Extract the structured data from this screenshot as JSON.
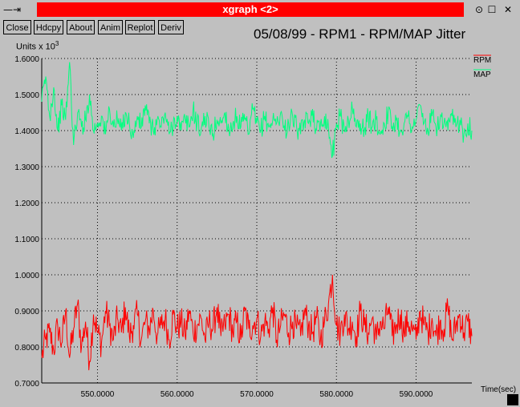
{
  "window": {
    "title": "xgraph <2>",
    "left_glyphs": "—⇥",
    "minimize_glyph": "⊙",
    "maximize_glyph": "☐",
    "close_glyph": "✕"
  },
  "toolbar": {
    "buttons": [
      "Close",
      "Hdcpy",
      "About",
      "Anim",
      "Replot",
      "Deriv"
    ]
  },
  "header": {
    "title": "05/08/99 - RPM1 - RPM/MAP Jitter",
    "units_label": "Units x 10",
    "units_exponent": "3"
  },
  "colors": {
    "rpm": "#ff0000",
    "map": "#00ff7f",
    "grid": "#000000",
    "background": "#c0c0c0"
  },
  "chart_data": {
    "type": "line",
    "title": "05/08/99 - RPM1 - RPM/MAP Jitter",
    "xlabel": "Time(sec)",
    "ylabel": "Units x 10^3",
    "xlim": [
      543.0,
      597.0
    ],
    "ylim": [
      0.7,
      1.6
    ],
    "x_ticks": [
      "550.0000",
      "560.0000",
      "570.0000",
      "580.0000",
      "590.0000"
    ],
    "x_tick_values": [
      550,
      560,
      570,
      580,
      590
    ],
    "y_ticks": [
      "0.7000",
      "0.8000",
      "0.9000",
      "1.0000",
      "1.1000",
      "1.2000",
      "1.3000",
      "1.4000",
      "1.5000",
      "1.6000"
    ],
    "y_tick_values": [
      0.7,
      0.8,
      0.9,
      1.0,
      1.1,
      1.2,
      1.3,
      1.4,
      1.5,
      1.6
    ],
    "grid": true,
    "legend_position": "top-right",
    "series": [
      {
        "name": "RPM",
        "color": "#ff0000",
        "x": [
          543.0,
          543.5,
          544.0,
          544.5,
          545.0,
          545.5,
          546.0,
          546.5,
          547.0,
          547.5,
          548.0,
          548.5,
          549.0,
          549.5,
          550.0,
          550.5,
          551.0,
          551.5,
          552.0,
          552.5,
          553.0,
          553.5,
          554.0,
          554.5,
          555.0,
          555.5,
          556.0,
          556.5,
          557.0,
          557.5,
          558.0,
          558.5,
          559.0,
          559.5,
          560.0,
          560.5,
          561.0,
          561.5,
          562.0,
          562.5,
          563.0,
          563.5,
          564.0,
          564.5,
          565.0,
          565.5,
          566.0,
          566.5,
          567.0,
          567.5,
          568.0,
          568.5,
          569.0,
          569.5,
          570.0,
          570.5,
          571.0,
          571.5,
          572.0,
          572.5,
          573.0,
          573.5,
          574.0,
          574.5,
          575.0,
          575.5,
          576.0,
          576.5,
          577.0,
          577.5,
          578.0,
          578.5,
          579.0,
          579.5,
          580.0,
          580.5,
          581.0,
          581.5,
          582.0,
          582.5,
          583.0,
          583.5,
          584.0,
          584.5,
          585.0,
          585.5,
          586.0,
          586.5,
          587.0,
          587.5,
          588.0,
          588.5,
          589.0,
          589.5,
          590.0,
          590.5,
          591.0,
          591.5,
          592.0,
          592.5,
          593.0,
          593.5,
          594.0,
          594.5,
          595.0,
          595.5,
          596.0,
          596.5,
          597.0
        ],
        "y": [
          0.77,
          0.82,
          0.84,
          0.79,
          0.86,
          0.81,
          0.9,
          0.77,
          0.85,
          0.92,
          0.8,
          0.87,
          0.76,
          0.89,
          0.84,
          0.81,
          0.9,
          0.86,
          0.82,
          0.88,
          0.84,
          0.91,
          0.83,
          0.86,
          0.89,
          0.82,
          0.87,
          0.85,
          0.9,
          0.83,
          0.86,
          0.88,
          0.82,
          0.89,
          0.85,
          0.87,
          0.83,
          0.9,
          0.84,
          0.86,
          0.88,
          0.82,
          0.87,
          0.85,
          0.91,
          0.83,
          0.86,
          0.89,
          0.84,
          0.87,
          0.82,
          0.9,
          0.85,
          0.86,
          0.88,
          0.83,
          0.87,
          0.85,
          0.91,
          0.82,
          0.86,
          0.89,
          0.84,
          0.87,
          0.85,
          0.83,
          0.9,
          0.86,
          0.84,
          0.88,
          0.82,
          0.87,
          0.92,
          1.0,
          0.86,
          0.84,
          0.89,
          0.85,
          0.87,
          0.83,
          0.9,
          0.86,
          0.84,
          0.88,
          0.82,
          0.87,
          0.85,
          0.91,
          0.83,
          0.86,
          0.89,
          0.84,
          0.87,
          0.85,
          0.82,
          0.9,
          0.86,
          0.84,
          0.88,
          0.83,
          0.87,
          0.85,
          0.91,
          0.82,
          0.86,
          0.89,
          0.84,
          0.87,
          0.83
        ],
        "amplitude": 0.045
      },
      {
        "name": "MAP",
        "color": "#00ff7f",
        "x": [
          543.0,
          543.5,
          544.0,
          544.5,
          545.0,
          545.5,
          546.0,
          546.5,
          547.0,
          547.5,
          548.0,
          548.5,
          549.0,
          549.5,
          550.0,
          550.5,
          551.0,
          551.5,
          552.0,
          552.5,
          553.0,
          553.5,
          554.0,
          554.5,
          555.0,
          555.5,
          556.0,
          556.5,
          557.0,
          557.5,
          558.0,
          558.5,
          559.0,
          559.5,
          560.0,
          560.5,
          561.0,
          561.5,
          562.0,
          562.5,
          563.0,
          563.5,
          564.0,
          564.5,
          565.0,
          565.5,
          566.0,
          566.5,
          567.0,
          567.5,
          568.0,
          568.5,
          569.0,
          569.5,
          570.0,
          570.5,
          571.0,
          571.5,
          572.0,
          572.5,
          573.0,
          573.5,
          574.0,
          574.5,
          575.0,
          575.5,
          576.0,
          576.5,
          577.0,
          577.5,
          578.0,
          578.5,
          579.0,
          579.5,
          580.0,
          580.5,
          581.0,
          581.5,
          582.0,
          582.5,
          583.0,
          583.5,
          584.0,
          584.5,
          585.0,
          585.5,
          586.0,
          586.5,
          587.0,
          587.5,
          588.0,
          588.5,
          589.0,
          589.5,
          590.0,
          590.5,
          591.0,
          591.5,
          592.0,
          592.5,
          593.0,
          593.5,
          594.0,
          594.5,
          595.0,
          595.5,
          596.0,
          596.5,
          597.0
        ],
        "y": [
          1.48,
          1.55,
          1.44,
          1.52,
          1.4,
          1.47,
          1.43,
          1.59,
          1.36,
          1.45,
          1.41,
          1.43,
          1.5,
          1.4,
          1.42,
          1.44,
          1.39,
          1.46,
          1.41,
          1.43,
          1.4,
          1.45,
          1.42,
          1.38,
          1.44,
          1.41,
          1.47,
          1.42,
          1.4,
          1.43,
          1.41,
          1.45,
          1.39,
          1.42,
          1.44,
          1.4,
          1.43,
          1.41,
          1.46,
          1.42,
          1.4,
          1.44,
          1.41,
          1.39,
          1.43,
          1.42,
          1.45,
          1.4,
          1.42,
          1.44,
          1.41,
          1.43,
          1.39,
          1.46,
          1.42,
          1.4,
          1.44,
          1.41,
          1.43,
          1.42,
          1.45,
          1.4,
          1.42,
          1.44,
          1.41,
          1.39,
          1.43,
          1.42,
          1.46,
          1.4,
          1.42,
          1.44,
          1.41,
          1.33,
          1.42,
          1.44,
          1.4,
          1.43,
          1.46,
          1.41,
          1.42,
          1.4,
          1.44,
          1.41,
          1.43,
          1.39,
          1.42,
          1.45,
          1.41,
          1.43,
          1.4,
          1.42,
          1.44,
          1.41,
          1.43,
          1.47,
          1.42,
          1.4,
          1.44,
          1.41,
          1.43,
          1.42,
          1.4,
          1.44,
          1.41,
          1.43,
          1.39,
          1.42,
          1.4
        ],
        "amplitude": 0.03
      }
    ]
  }
}
